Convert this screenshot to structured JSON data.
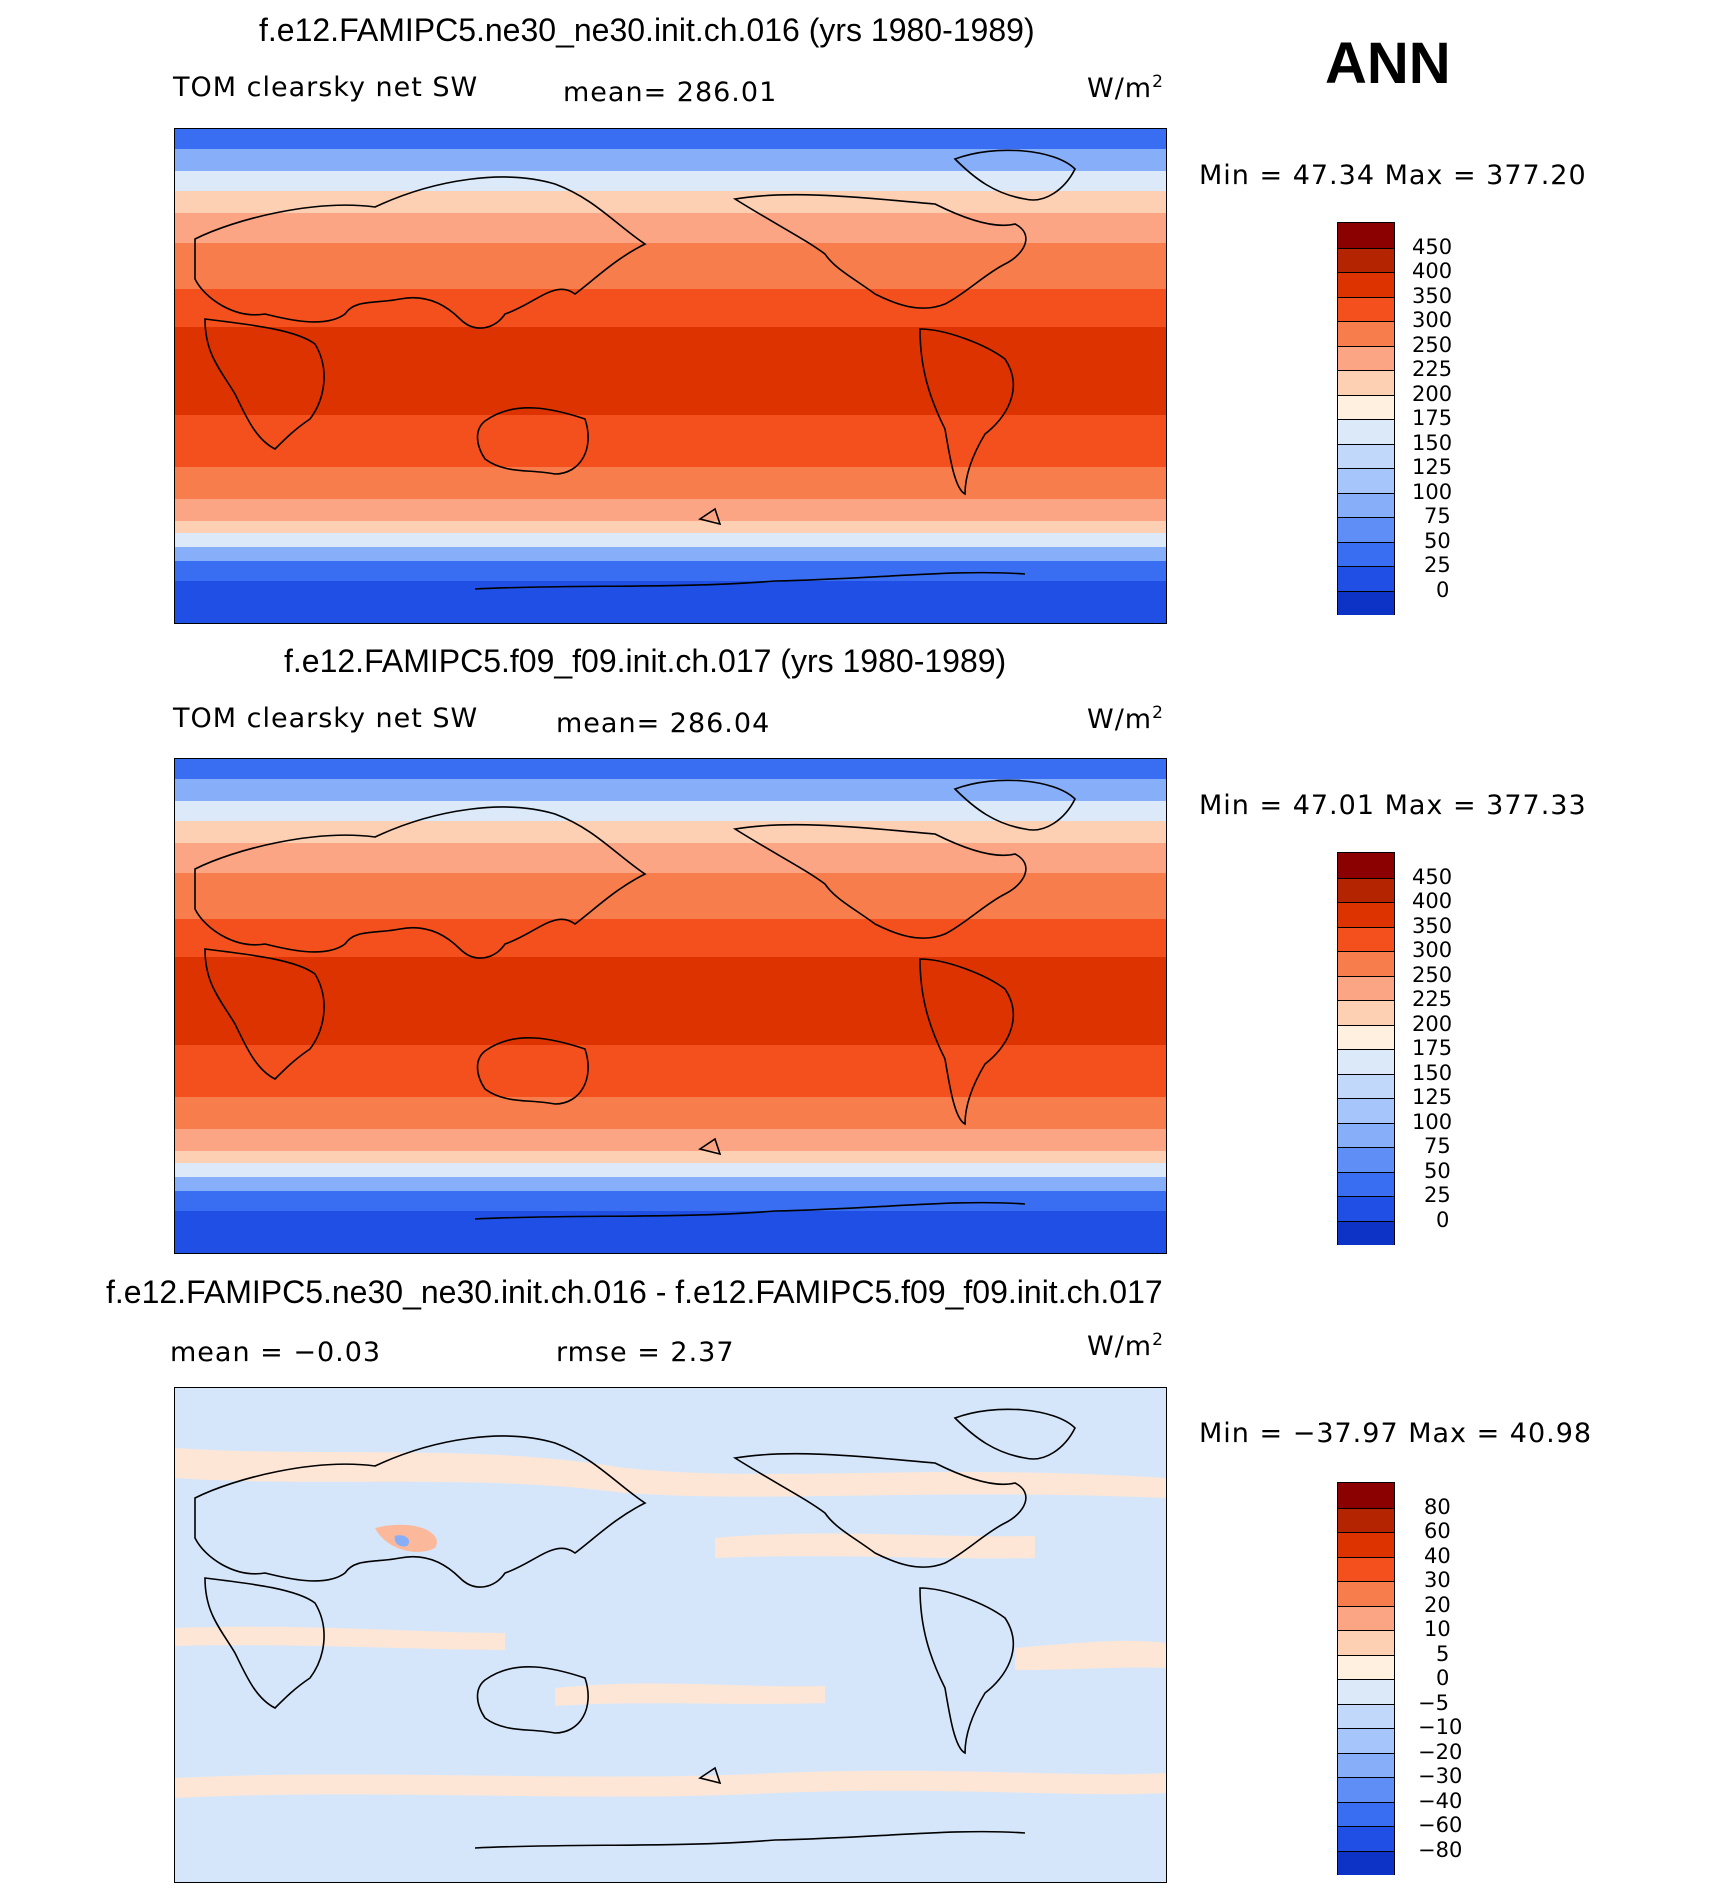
{
  "season": "ANN",
  "units_base": "W/m",
  "units_exp": "2",
  "panels": [
    {
      "title": "f.e12.FAMIPC5.ne30_ne30.init.ch.016 (yrs 1980-1989)",
      "left_label": "TOM clearsky net SW",
      "center_label": "mean= 286.01",
      "minmax": "Min =   47.34 Max = 377.20"
    },
    {
      "title": "f.e12.FAMIPC5.f09_f09.init.ch.017 (yrs 1980-1989)",
      "left_label": "TOM clearsky net SW",
      "center_label": "mean= 286.04",
      "minmax": "Min =   47.01 Max = 377.33"
    },
    {
      "title": "f.e12.FAMIPC5.ne30_ne30.init.ch.016 - f.e12.FAMIPC5.f09_f09.init.ch.017",
      "left_label": "mean =   −0.03",
      "center_label": "rmse =    2.37",
      "minmax": "Min = −37.97 Max =   40.98"
    }
  ],
  "chart_data": [
    {
      "type": "heatmap",
      "title": "f.e12.FAMIPC5.ne30_ne30.init.ch.016 (yrs 1980-1989)",
      "variable": "TOM clearsky net SW",
      "units": "W/m2",
      "mean": 286.01,
      "min": 47.34,
      "max": 377.2,
      "colorbar_levels": [
        "450",
        "400",
        "350",
        "300",
        "250",
        "225",
        "200",
        "175",
        "150",
        "125",
        "100",
        "75",
        "50",
        "25",
        "0"
      ],
      "colorbar_colors": [
        "#8b0000",
        "#b52400",
        "#dd3300",
        "#f4501e",
        "#f87d4c",
        "#fba584",
        "#fdcfb3",
        "#fff0df",
        "#dbe9f8",
        "#c1d8fa",
        "#a6c5fb",
        "#86aef9",
        "#5f8ff6",
        "#3a6ef2",
        "#1f4fe5",
        "#0c33c6",
        "#062097",
        "#00006a"
      ]
    },
    {
      "type": "heatmap",
      "title": "f.e12.FAMIPC5.f09_f09.init.ch.017 (yrs 1980-1989)",
      "variable": "TOM clearsky net SW",
      "units": "W/m2",
      "mean": 286.04,
      "min": 47.01,
      "max": 377.33,
      "colorbar_levels": [
        "450",
        "400",
        "350",
        "300",
        "250",
        "225",
        "200",
        "175",
        "150",
        "125",
        "100",
        "75",
        "50",
        "25",
        "0"
      ]
    },
    {
      "type": "heatmap",
      "title": "f.e12.FAMIPC5.ne30_ne30.init.ch.016 - f.e12.FAMIPC5.f09_f09.init.ch.017",
      "units": "W/m2",
      "mean": -0.03,
      "rmse": 2.37,
      "min": -37.97,
      "max": 40.98,
      "colorbar_levels": [
        "80",
        "60",
        "40",
        "30",
        "20",
        "10",
        "5",
        "0",
        "−5",
        "−10",
        "−20",
        "−30",
        "−40",
        "−60",
        "−80"
      ]
    }
  ]
}
